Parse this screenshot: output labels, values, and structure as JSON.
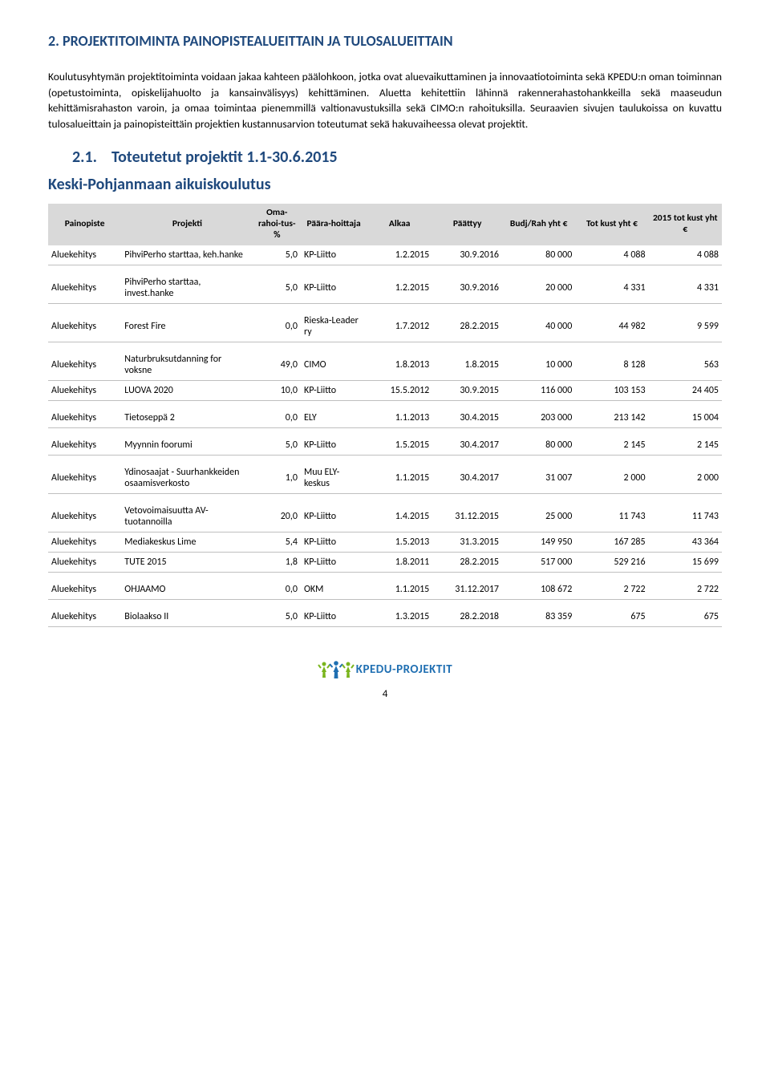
{
  "section_title": "2. PROJEKTITOIMINTA PAINOPISTEALUEITTAIN JA TULOSALUEITTAIN",
  "paragraph": "Koulutusyhtymän projektitoiminta voidaan jakaa kahteen päälohkoon, jotka ovat aluevaikuttaminen ja innovaatiotoiminta sekä KPEDU:n oman toiminnan (opetustoiminta, opiskelijahuolto ja kansainvälisyys) kehittäminen. Aluetta kehitettiin lähinnä rakennerahastohankkeilla sekä maaseudun kehittämisrahaston varoin, ja omaa toimintaa pienemmillä valtionavustuksilla sekä CIMO:n rahoituksilla. Seuraavien sivujen taulukoissa on kuvattu tulosalueittain ja painopisteittäin projektien kustannusarvion toteutumat sekä hakuvaiheessa olevat projektit.",
  "subsection_num": "2.1.",
  "subsection_title": "Toteutetut projektit 1.1-30.6.2015",
  "org_title": "Keski-Pohjanmaan aikuiskoulutus",
  "columns": {
    "c1": "Painopiste",
    "c2": "Projekti",
    "c3": "Oma-rahoi-tus-%",
    "c4": "Päära-hoittaja",
    "c5": "Alkaa",
    "c6": "Päättyy",
    "c7": "Budj/Rah yht €",
    "c8": "Tot kust yht €",
    "c9": "2015 tot kust yht €"
  },
  "col_widths": {
    "c1": "10%",
    "c2": "18%",
    "c3": "6.5%",
    "c4": "9%",
    "c5": "9%",
    "c6": "9.5%",
    "c7": "10%",
    "c8": "10%",
    "c9": "10%"
  },
  "rows": [
    {
      "painopiste": "Aluekehitys",
      "projekti": "PihviPerho starttaa, keh.hanke",
      "oma": "5,0",
      "rahoittaja": "KP-Liitto",
      "alkaa": "1.2.2015",
      "paattyy": "30.9.2016",
      "budj": "80 000",
      "tot": "4 088",
      "tot2015": "4 088",
      "gap": false
    },
    {
      "painopiste": "Aluekehitys",
      "projekti": "PihviPerho starttaa, invest.hanke",
      "oma": "5,0",
      "rahoittaja": "KP-Liitto",
      "alkaa": "1.2.2015",
      "paattyy": "30.9.2016",
      "budj": "20 000",
      "tot": "4 331",
      "tot2015": "4 331",
      "gap": true
    },
    {
      "painopiste": "Aluekehitys",
      "projekti": "Forest Fire",
      "oma": "0,0",
      "rahoittaja": "Rieska-Leader ry",
      "alkaa": "1.7.2012",
      "paattyy": "28.2.2015",
      "budj": "40 000",
      "tot": "44 982",
      "tot2015": "9 599",
      "gap": true
    },
    {
      "painopiste": "Aluekehitys",
      "projekti": "Naturbruksutdanning for voksne",
      "oma": "49,0",
      "rahoittaja": "CIMO",
      "alkaa": "1.8.2013",
      "paattyy": "1.8.2015",
      "budj": "10 000",
      "tot": "8 128",
      "tot2015": "563",
      "gap": true
    },
    {
      "painopiste": "Aluekehitys",
      "projekti": "LUOVA 2020",
      "oma": "10,0",
      "rahoittaja": "KP-Liitto",
      "alkaa": "15.5.2012",
      "paattyy": "30.9.2015",
      "budj": "116 000",
      "tot": "103 153",
      "tot2015": "24 405",
      "gap": false
    },
    {
      "painopiste": "Aluekehitys",
      "projekti": "Tietoseppä 2",
      "oma": "0,0",
      "rahoittaja": "ELY",
      "alkaa": "1.1.2013",
      "paattyy": "30.4.2015",
      "budj": "203 000",
      "tot": "213 142",
      "tot2015": "15 004",
      "gap": true
    },
    {
      "painopiste": "Aluekehitys",
      "projekti": "Myynnin foorumi",
      "oma": "5,0",
      "rahoittaja": "KP-Liitto",
      "alkaa": "1.5.2015",
      "paattyy": "30.4.2017",
      "budj": "80 000",
      "tot": "2 145",
      "tot2015": "2 145",
      "gap": true
    },
    {
      "painopiste": "Aluekehitys",
      "projekti": "Ydinosaajat - Suurhankkeiden osaamisverkosto",
      "oma": "1,0",
      "rahoittaja": "Muu ELY-keskus",
      "alkaa": "1.1.2015",
      "paattyy": "30.4.2017",
      "budj": "31 007",
      "tot": "2 000",
      "tot2015": "2 000",
      "gap": true
    },
    {
      "painopiste": "Aluekehitys",
      "projekti": "Vetovoimaisuutta AV-tuotannoilla",
      "oma": "20,0",
      "rahoittaja": "KP-Liitto",
      "alkaa": "1.4.2015",
      "paattyy": "31.12.2015",
      "budj": "25 000",
      "tot": "11 743",
      "tot2015": "11 743",
      "gap": true
    },
    {
      "painopiste": "Aluekehitys",
      "projekti": "Mediakeskus Lime",
      "oma": "5,4",
      "rahoittaja": "KP-Liitto",
      "alkaa": "1.5.2013",
      "paattyy": "31.3.2015",
      "budj": "149 950",
      "tot": "167 285",
      "tot2015": "43 364",
      "gap": false
    },
    {
      "painopiste": "Aluekehitys",
      "projekti": "TUTE 2015",
      "oma": "1,8",
      "rahoittaja": "KP-Liitto",
      "alkaa": "1.8.2011",
      "paattyy": "28.2.2015",
      "budj": "517 000",
      "tot": "529 216",
      "tot2015": "15 699",
      "gap": false
    },
    {
      "painopiste": "Aluekehitys",
      "projekti": "OHJAAMO",
      "oma": "0,0",
      "rahoittaja": "OKM",
      "alkaa": "1.1.2015",
      "paattyy": "31.12.2017",
      "budj": "108 672",
      "tot": "2 722",
      "tot2015": "2 722",
      "gap": true
    },
    {
      "painopiste": "Aluekehitys",
      "projekti": "Biolaakso II",
      "oma": "5,0",
      "rahoittaja": "KP-Liitto",
      "alkaa": "1.3.2015",
      "paattyy": "28.2.2018",
      "budj": "83 359",
      "tot": "675",
      "tot2015": "675",
      "gap": true
    }
  ],
  "logo_text": "KPEDU-PROJEKTIT",
  "page_number": "4",
  "colors": {
    "heading": "#1f497d",
    "header_bg": "#d9d9d9",
    "row_border": "#bfbfbf",
    "logo_blue": "#1f6fb2",
    "logo_green": "#7ab51d"
  }
}
